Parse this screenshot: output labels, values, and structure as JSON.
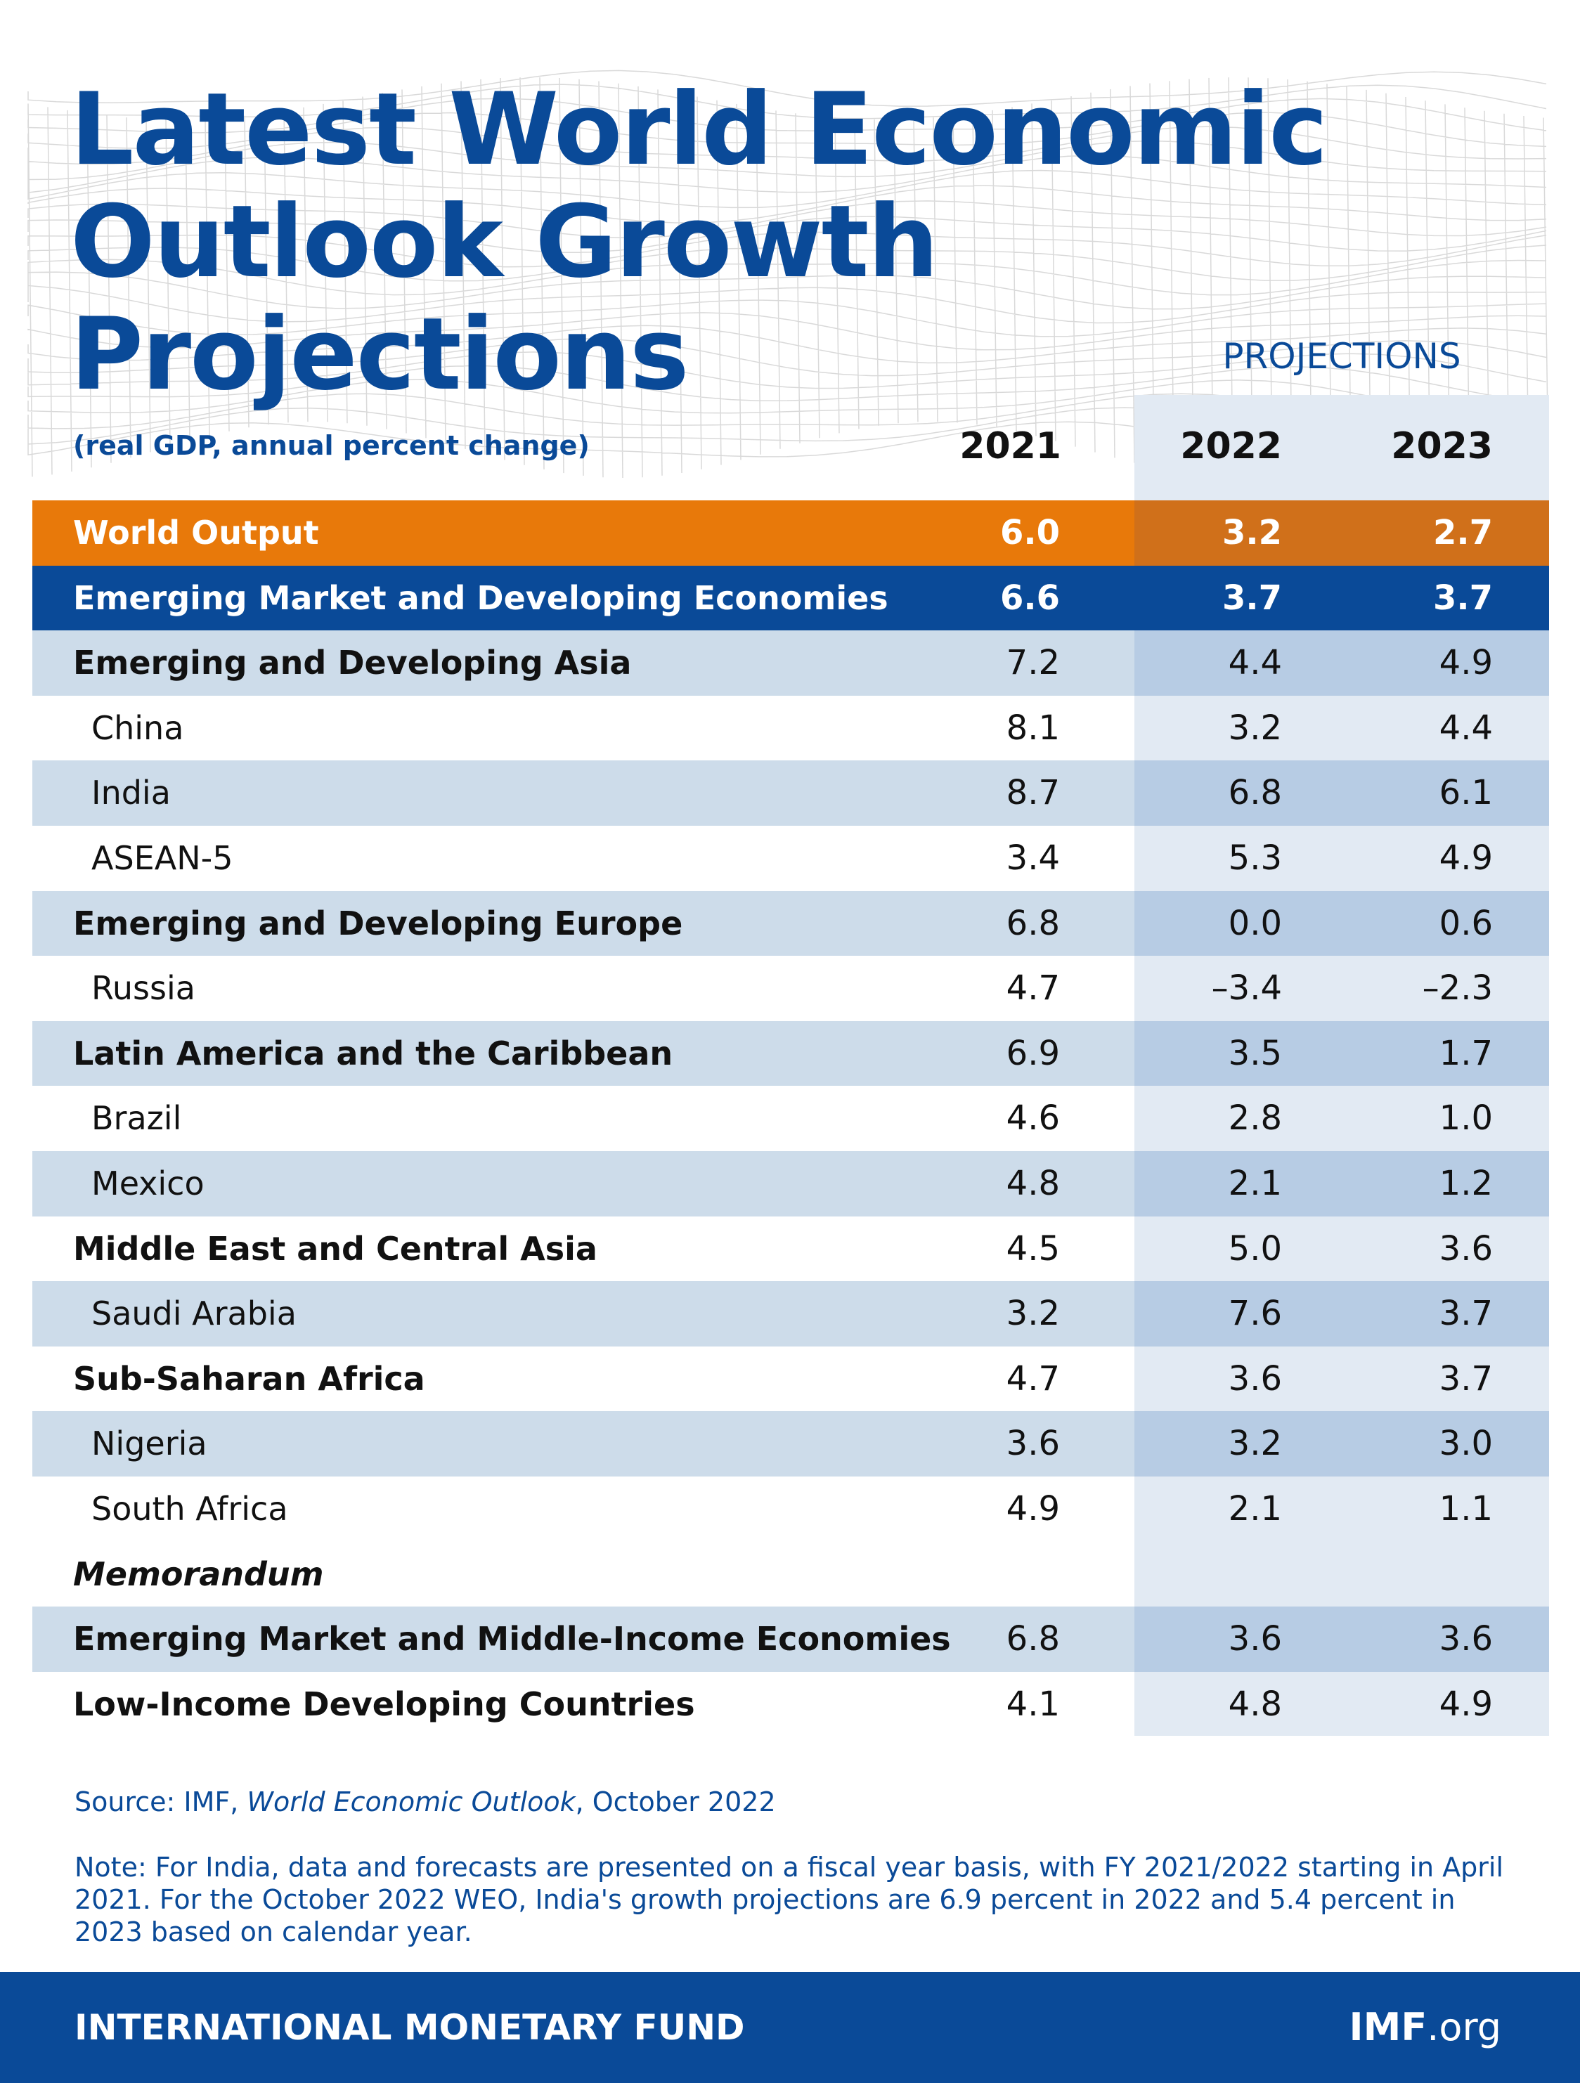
{
  "title_line1": "Latest World Economic",
  "title_line2": "Outlook Growth Projections",
  "projections_label": "PROJECTIONS",
  "units_label": "(real GDP, annual percent change)",
  "colors": {
    "brand_blue": "#0a4a98",
    "world_output_orange": "#e8790a",
    "world_output_orange_dark": "#d0701a",
    "band_light": "#cddcea",
    "band_projection": "#b7cce4",
    "projection_panel": "#e2eaf3"
  },
  "chart_data": {
    "type": "table",
    "columns": [
      "2021",
      "2022",
      "2023"
    ],
    "rows": [
      {
        "label": "World Output",
        "values": [
          "6.0",
          "3.2",
          "2.7"
        ],
        "style": "world"
      },
      {
        "label": "Emerging Market and Developing Economies",
        "values": [
          "6.6",
          "3.7",
          "3.7"
        ],
        "style": "emde"
      },
      {
        "label": "Emerging and Developing Asia",
        "values": [
          "7.2",
          "4.4",
          "4.9"
        ],
        "style": "region-shaded"
      },
      {
        "label": "China",
        "values": [
          "8.1",
          "3.2",
          "4.4"
        ],
        "style": "country"
      },
      {
        "label": "India",
        "values": [
          "8.7",
          "6.8",
          "6.1"
        ],
        "style": "country-shaded"
      },
      {
        "label": "ASEAN-5",
        "values": [
          "3.4",
          "5.3",
          "4.9"
        ],
        "style": "country"
      },
      {
        "label": "Emerging and Developing Europe",
        "values": [
          "6.8",
          "0.0",
          "0.6"
        ],
        "style": "region-shaded"
      },
      {
        "label": "Russia",
        "values": [
          "4.7",
          "–3.4",
          "–2.3"
        ],
        "style": "country"
      },
      {
        "label": "Latin America and the Caribbean",
        "values": [
          "6.9",
          "3.5",
          "1.7"
        ],
        "style": "region-shaded"
      },
      {
        "label": "Brazil",
        "values": [
          "4.6",
          "2.8",
          "1.0"
        ],
        "style": "country"
      },
      {
        "label": "Mexico",
        "values": [
          "4.8",
          "2.1",
          "1.2"
        ],
        "style": "country-shaded"
      },
      {
        "label": "Middle East and Central Asia",
        "values": [
          "4.5",
          "5.0",
          "3.6"
        ],
        "style": "region"
      },
      {
        "label": "Saudi Arabia",
        "values": [
          "3.2",
          "7.6",
          "3.7"
        ],
        "style": "country-shaded"
      },
      {
        "label": "Sub-Saharan Africa",
        "values": [
          "4.7",
          "3.6",
          "3.7"
        ],
        "style": "region"
      },
      {
        "label": "Nigeria",
        "values": [
          "3.6",
          "3.2",
          "3.0"
        ],
        "style": "country-shaded"
      },
      {
        "label": "South Africa",
        "values": [
          "4.9",
          "2.1",
          "1.1"
        ],
        "style": "country"
      },
      {
        "label": "Memorandum",
        "values": [
          "",
          "",
          ""
        ],
        "style": "memo"
      },
      {
        "label": "Emerging Market and Middle-Income Economies",
        "values": [
          "6.8",
          "3.6",
          "3.6"
        ],
        "style": "region-shaded"
      },
      {
        "label": "Low-Income Developing Countries",
        "values": [
          "4.1",
          "4.8",
          "4.9"
        ],
        "style": "region"
      }
    ]
  },
  "source": {
    "prefix": "Source: IMF, ",
    "publication": "World Economic Outlook",
    "suffix": ", October 2022"
  },
  "note": "Note: For India, data and forecasts are presented on a fiscal year basis, with FY 2021/2022 starting in April 2021. For the October 2022 WEO, India's growth projections are 6.9 percent in 2022 and 5.4 percent in 2023 based on calendar year.",
  "footer": {
    "organization": "INTERNATIONAL MONETARY FUND",
    "site_bold": "IMF",
    "site_rest": ".org"
  }
}
